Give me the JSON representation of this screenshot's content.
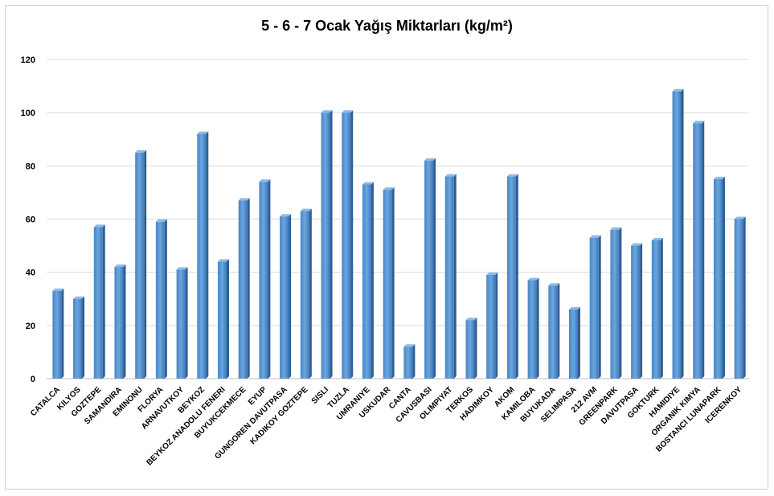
{
  "chart_data": {
    "type": "bar",
    "title": "5 - 6 - 7 Ocak Yağış Miktarları (kg/m²)",
    "xlabel": "",
    "ylabel": "",
    "ylim": [
      0,
      120
    ],
    "yticks": [
      0,
      20,
      40,
      60,
      80,
      100,
      120
    ],
    "grid": true,
    "legend": "none",
    "bar_color": "#5b9bd5",
    "categories": [
      "CATALCA",
      "KILYOS",
      "GOZTEPE",
      "SAMANDIRA",
      "EMINONU",
      "FLORYA",
      "ARNAVUTKOY",
      "BEYKOZ",
      "BEYKOZ ANADOLU FENERI",
      "BUYUKCEKMECE",
      "EYUP",
      "GUNGOREN DAVUTPASA",
      "KADIKOY GOZTEPE",
      "SISLI",
      "TUZLA",
      "UMRANIYE",
      "USKUDAR",
      "CANTA",
      "CAVUSBASI",
      "OLIMPIYAT",
      "TERKOS",
      "HADIMKOY",
      "AKOM",
      "KAMILOBA",
      "BUYUKADA",
      "SELIMPASA",
      "212 AVM",
      "GREENPARK",
      "DAVUTPASA",
      "GOKTURK",
      "HAMIDIYE",
      "ORGANIK KIMYA",
      "BOSTANCI LUNAPARK",
      "ICERENKOY"
    ],
    "values": [
      33,
      30,
      57,
      42,
      85,
      59,
      41,
      92,
      44,
      67,
      74,
      61,
      63,
      100,
      100,
      73,
      71,
      12,
      82,
      76,
      22,
      39,
      76,
      37,
      35,
      26,
      53,
      56,
      50,
      52,
      108,
      96,
      75,
      60
    ]
  }
}
